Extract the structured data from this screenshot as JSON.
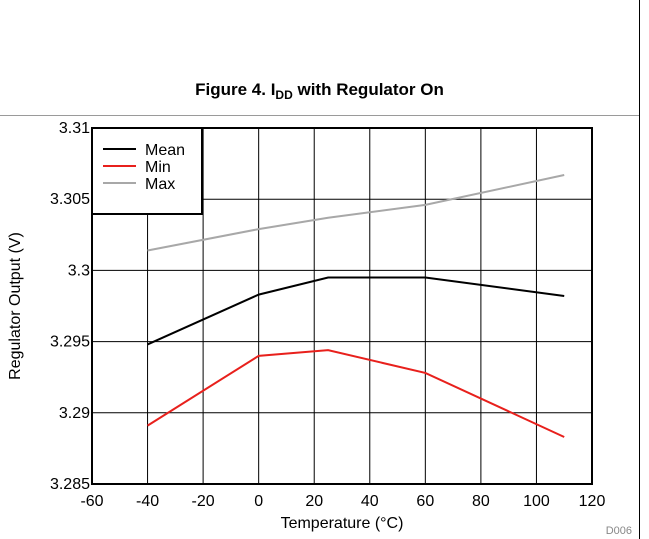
{
  "figure": {
    "title_main": "Figure 4. I",
    "title_sub": "DD",
    "title_tail": " with Regulator On",
    "code": "D006"
  },
  "chart_data": {
    "type": "line",
    "xlabel": "Temperature (°C)",
    "ylabel": "Regulator Output (V)",
    "xlim": [
      -60,
      120
    ],
    "ylim": [
      3.285,
      3.31
    ],
    "x_ticks": [
      -60,
      -40,
      -20,
      0,
      20,
      40,
      60,
      80,
      100,
      120
    ],
    "y_ticks": [
      3.285,
      3.29,
      3.295,
      3.3,
      3.305,
      3.31
    ],
    "y_tick_labels": [
      "3.285",
      "3.29",
      "3.295",
      "3.3",
      "3.305",
      "3.31"
    ],
    "grid": true,
    "legend_position": "top-left",
    "x": [
      -40,
      0,
      25,
      60,
      110
    ],
    "series": [
      {
        "name": "Mean",
        "color": "#000000",
        "values": [
          3.2948,
          3.2983,
          3.2995,
          3.2995,
          3.2982
        ]
      },
      {
        "name": "Min",
        "color": "#e8201c",
        "values": [
          3.2891,
          3.294,
          3.2944,
          3.2928,
          3.2883
        ]
      },
      {
        "name": "Max",
        "color": "#a8a8a8",
        "values": [
          3.3014,
          3.3029,
          3.3037,
          3.3046,
          3.3067
        ]
      }
    ]
  }
}
